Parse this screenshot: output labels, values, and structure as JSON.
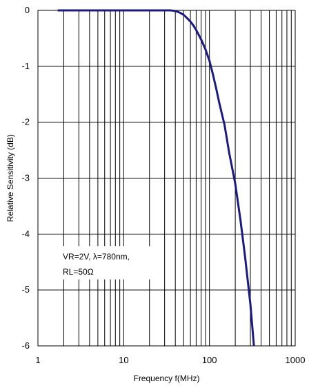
{
  "chart_data": {
    "type": "line",
    "title": "",
    "xlabel": "Frequency f(MHz)",
    "ylabel": "Relative Sensitivity (dB)",
    "x_scale": "log",
    "xlim": [
      1,
      1000
    ],
    "ylim": [
      -6,
      0
    ],
    "x_ticks": [
      "1",
      "10",
      "100",
      "1000"
    ],
    "y_ticks": [
      "0",
      "-1",
      "-2",
      "-3",
      "-4",
      "-5",
      "-6"
    ],
    "grid": true,
    "legend": "none",
    "annotation": [
      "VR=2V, λ=780nm,",
      "RL=50Ω"
    ],
    "series": [
      {
        "color": "#1a1a80",
        "x": [
          1.7,
          5,
          10,
          20,
          35,
          40,
          45,
          50,
          55,
          60,
          65,
          70,
          80,
          90,
          100,
          110,
          120,
          130,
          150,
          170,
          200,
          230,
          260,
          300,
          330
        ],
        "y": [
          0,
          0,
          0,
          0,
          0,
          -0.01,
          -0.04,
          -0.08,
          -0.14,
          -0.2,
          -0.27,
          -0.35,
          -0.52,
          -0.7,
          -0.9,
          -1.15,
          -1.4,
          -1.65,
          -2.05,
          -2.55,
          -3.1,
          -3.75,
          -4.4,
          -5.25,
          -6.0
        ]
      }
    ]
  }
}
